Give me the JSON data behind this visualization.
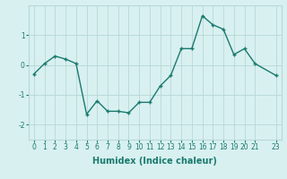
{
  "x": [
    0,
    1,
    2,
    3,
    4,
    5,
    6,
    7,
    8,
    9,
    10,
    11,
    12,
    13,
    14,
    15,
    16,
    17,
    18,
    19,
    20,
    21,
    23
  ],
  "y": [
    -0.3,
    0.05,
    0.3,
    0.2,
    0.05,
    -1.65,
    -1.2,
    -1.55,
    -1.55,
    -1.6,
    -1.25,
    -1.25,
    -0.7,
    -0.35,
    0.55,
    0.55,
    1.65,
    1.35,
    1.2,
    0.35,
    0.55,
    0.05,
    -0.35
  ],
  "line_color": "#1a7a6e",
  "marker": "+",
  "markersize": 3,
  "linewidth": 1.0,
  "bg_color": "#d8f0f0",
  "grid_color": "#b8d8d8",
  "xlabel": "Humidex (Indice chaleur)",
  "xlabel_fontsize": 7,
  "xlim": [
    -0.5,
    23.5
  ],
  "ylim": [
    -2.5,
    2.0
  ],
  "yticks": [
    -2,
    -1,
    0,
    1
  ],
  "xticks": [
    0,
    1,
    2,
    3,
    4,
    5,
    6,
    7,
    8,
    9,
    10,
    11,
    12,
    13,
    14,
    15,
    16,
    17,
    18,
    19,
    20,
    21,
    23
  ],
  "tick_fontsize": 5.5
}
